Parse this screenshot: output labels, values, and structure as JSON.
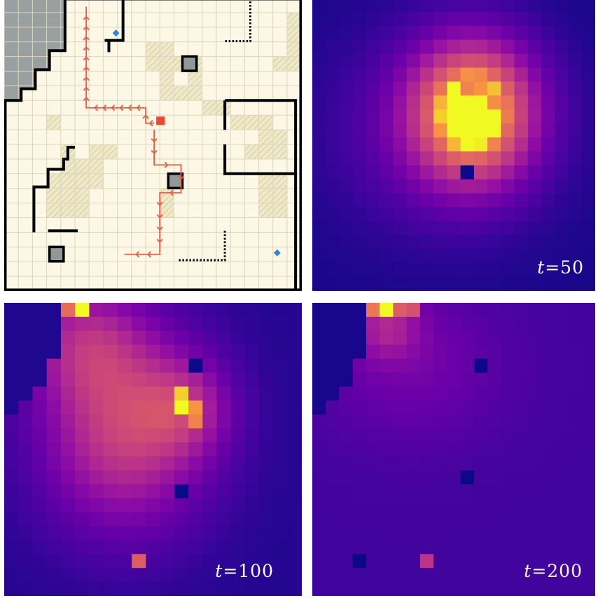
{
  "colors": {
    "floor": "#fdf7e6",
    "grid": "#ddd5be",
    "rock": "#98a0a0",
    "wall": "#000000",
    "path": "#f05a3c",
    "agent": "#f04830",
    "goal": "#2f86d6",
    "hatch": "#e6dfb8"
  },
  "panels": {
    "map": {},
    "heat_t50": {
      "label": "t=50",
      "label_var": "t",
      "label_val": "=50"
    },
    "heat_t100": {
      "label": "t=100",
      "label_var": "t",
      "label_val": "=100"
    },
    "heat_t200": {
      "label": "t=200",
      "label_var": "t",
      "label_val": "=200"
    }
  }
}
